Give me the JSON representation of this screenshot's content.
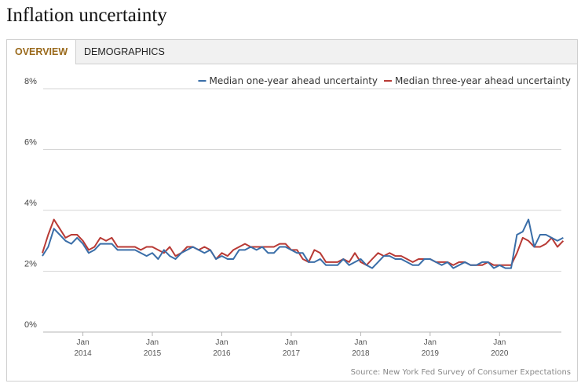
{
  "page": {
    "title": "Inflation uncertainty"
  },
  "tabs": [
    {
      "label": "OVERVIEW",
      "active": true
    },
    {
      "label": "DEMOGRAPHICS",
      "active": false
    }
  ],
  "colors": {
    "one_year": "#3a6ea8",
    "three_year": "#b83a35",
    "active_tab": "#9a6a1c"
  },
  "chart_data": {
    "type": "line",
    "title": "",
    "xlabel": "",
    "ylabel": "",
    "ylim": [
      0,
      8
    ],
    "y_ticks": [
      {
        "value": 0,
        "label": "0%"
      },
      {
        "value": 2,
        "label": "2%"
      },
      {
        "value": 4,
        "label": "4%"
      },
      {
        "value": 6,
        "label": "6%"
      },
      {
        "value": 8,
        "label": "8%"
      }
    ],
    "x_ticks": [
      {
        "month": 7,
        "month_label": "Jan",
        "year_label": "2014"
      },
      {
        "month": 19,
        "month_label": "Jan",
        "year_label": "2015"
      },
      {
        "month": 31,
        "month_label": "Jan",
        "year_label": "2016"
      },
      {
        "month": 43,
        "month_label": "Jan",
        "year_label": "2017"
      },
      {
        "month": 55,
        "month_label": "Jan",
        "year_label": "2018"
      },
      {
        "month": 67,
        "month_label": "Jan",
        "year_label": "2019"
      },
      {
        "month": 79,
        "month_label": "Jan",
        "year_label": "2020"
      }
    ],
    "x_range": [
      0,
      89
    ],
    "legend_position": "top-right",
    "grid": true,
    "series": [
      {
        "name": "Median one-year ahead uncertainty",
        "values": [
          2.5,
          2.8,
          3.4,
          3.2,
          3.0,
          2.9,
          3.1,
          2.9,
          2.6,
          2.7,
          2.9,
          2.9,
          2.9,
          2.7,
          2.7,
          2.7,
          2.7,
          2.6,
          2.5,
          2.6,
          2.4,
          2.7,
          2.5,
          2.4,
          2.6,
          2.7,
          2.8,
          2.7,
          2.6,
          2.7,
          2.4,
          2.5,
          2.4,
          2.4,
          2.7,
          2.7,
          2.8,
          2.7,
          2.8,
          2.6,
          2.6,
          2.8,
          2.8,
          2.7,
          2.6,
          2.6,
          2.3,
          2.3,
          2.4,
          2.2,
          2.2,
          2.2,
          2.4,
          2.2,
          2.3,
          2.4,
          2.2,
          2.1,
          2.3,
          2.5,
          2.5,
          2.4,
          2.4,
          2.3,
          2.2,
          2.2,
          2.4,
          2.4,
          2.3,
          2.2,
          2.3,
          2.1,
          2.2,
          2.3,
          2.2,
          2.2,
          2.3,
          2.3,
          2.1,
          2.2,
          2.1,
          2.1,
          3.2,
          3.3,
          3.7,
          2.8,
          3.2,
          3.2,
          3.1,
          3.0,
          3.1
        ],
        "label_color": "#3a6ea8"
      },
      {
        "name": "Median three-year ahead uncertainty",
        "values": [
          2.6,
          3.2,
          3.7,
          3.4,
          3.1,
          3.2,
          3.2,
          3.0,
          2.7,
          2.8,
          3.1,
          3.0,
          3.1,
          2.8,
          2.8,
          2.8,
          2.8,
          2.7,
          2.8,
          2.8,
          2.7,
          2.6,
          2.8,
          2.5,
          2.6,
          2.8,
          2.8,
          2.7,
          2.8,
          2.7,
          2.4,
          2.6,
          2.5,
          2.7,
          2.8,
          2.9,
          2.8,
          2.8,
          2.8,
          2.8,
          2.8,
          2.9,
          2.9,
          2.7,
          2.7,
          2.4,
          2.3,
          2.7,
          2.6,
          2.3,
          2.3,
          2.3,
          2.4,
          2.3,
          2.6,
          2.3,
          2.2,
          2.4,
          2.6,
          2.5,
          2.6,
          2.5,
          2.5,
          2.4,
          2.3,
          2.4,
          2.4,
          2.4,
          2.3,
          2.3,
          2.3,
          2.2,
          2.3,
          2.3,
          2.2,
          2.2,
          2.2,
          2.3,
          2.2,
          2.2,
          2.2,
          2.2,
          2.6,
          3.1,
          3.0,
          2.8,
          2.8,
          2.9,
          3.1,
          2.8,
          3.0
        ]
      }
    ],
    "source": "Source: New York Fed Survey of Consumer Expectations"
  }
}
